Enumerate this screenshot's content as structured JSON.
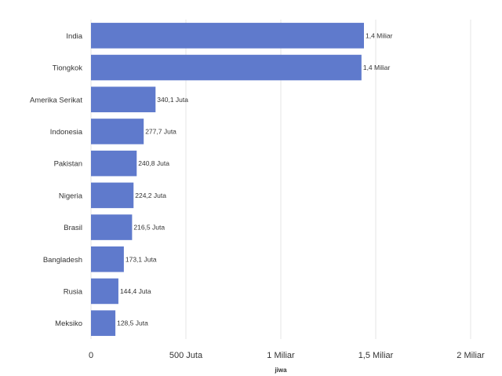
{
  "chart_data": {
    "type": "bar",
    "orientation": "horizontal",
    "categories": [
      "India",
      "Tiongkok",
      "Amerika Serikat",
      "Indonesia",
      "Pakistan",
      "Nigeria",
      "Brasil",
      "Bangladesh",
      "Rusia",
      "Meksiko"
    ],
    "values": [
      1438000000,
      1425000000,
      340100000,
      277700000,
      240800000,
      224200000,
      216500000,
      173100000,
      144400000,
      128500000
    ],
    "value_labels": [
      "1,4 Miliar",
      "1,4 Miliar",
      "340,1 Juta",
      "277,7 Juta",
      "240,8 Juta",
      "224,2 Juta",
      "216,5 Juta",
      "173,1 Juta",
      "144,4 Juta",
      "128,5 Juta"
    ],
    "xlabel": "jiwa",
    "xlim": [
      0,
      2000000000
    ],
    "xticks": [
      0,
      500000000,
      1000000000,
      1500000000,
      2000000000
    ],
    "xtick_labels": [
      "0",
      "500 Juta",
      "1 Miliar",
      "1,5 Miliar",
      "2 Miliar"
    ],
    "grid": "vertical",
    "bar_color": "#5f7acc"
  }
}
